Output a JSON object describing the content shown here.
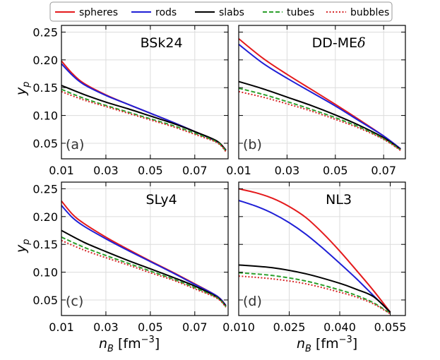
{
  "legend": {
    "position": "top-center",
    "entries": [
      {
        "name": "spheres",
        "color": "#e41a1c",
        "dash": "solid"
      },
      {
        "name": "rods",
        "color": "#1f1fd6",
        "dash": "solid"
      },
      {
        "name": "slabs",
        "color": "#000000",
        "dash": "solid"
      },
      {
        "name": "tubes",
        "color": "#2ca02c",
        "dash": "dashed"
      },
      {
        "name": "bubbles",
        "color": "#d62728",
        "dash": "dotted"
      }
    ]
  },
  "axes": {
    "ylabel_main": "y",
    "ylabel_sub": "p",
    "xlabel_main": "n",
    "xlabel_sub": "B",
    "xlabel_unit_open": " [fm",
    "xlabel_unit_exp": "−3",
    "xlabel_unit_close": "]"
  },
  "chart_data": [
    {
      "type": "line",
      "panel": "(a)",
      "title": "BSk24",
      "xlim": [
        0.01,
        0.085
      ],
      "ylim": [
        0.022,
        0.262
      ],
      "xticks": [
        0.01,
        0.03,
        0.05,
        0.07
      ],
      "xtick_labels": [
        "0.01",
        "0.03",
        "0.05",
        "0.07"
      ],
      "yticks": [
        0.05,
        0.1,
        0.15,
        0.2,
        0.25
      ],
      "ytick_labels": [
        "0.05",
        "0.10",
        "0.15",
        "0.20",
        "0.25"
      ],
      "ytick_labels_shown": true,
      "series": [
        {
          "name": "spheres",
          "x": [
            0.01,
            0.015,
            0.02,
            0.03,
            0.04,
            0.05,
            0.06,
            0.07,
            0.08,
            0.084
          ],
          "y": [
            0.198,
            0.175,
            0.158,
            0.137,
            0.12,
            0.104,
            0.088,
            0.071,
            0.053,
            0.038
          ]
        },
        {
          "name": "rods",
          "x": [
            0.01,
            0.015,
            0.02,
            0.03,
            0.04,
            0.05,
            0.06,
            0.07,
            0.08,
            0.084
          ],
          "y": [
            0.193,
            0.172,
            0.156,
            0.136,
            0.12,
            0.104,
            0.088,
            0.071,
            0.053,
            0.038
          ]
        },
        {
          "name": "slabs",
          "x": [
            0.01,
            0.02,
            0.03,
            0.04,
            0.05,
            0.06,
            0.07,
            0.08,
            0.084
          ],
          "y": [
            0.154,
            0.138,
            0.124,
            0.112,
            0.099,
            0.086,
            0.071,
            0.054,
            0.037
          ]
        },
        {
          "name": "tubes",
          "x": [
            0.01,
            0.02,
            0.03,
            0.04,
            0.05,
            0.06,
            0.07,
            0.08,
            0.084
          ],
          "y": [
            0.147,
            0.131,
            0.118,
            0.106,
            0.094,
            0.082,
            0.068,
            0.052,
            0.036
          ]
        },
        {
          "name": "bubbles",
          "x": [
            0.01,
            0.02,
            0.03,
            0.04,
            0.05,
            0.06,
            0.07,
            0.08,
            0.084
          ],
          "y": [
            0.143,
            0.128,
            0.116,
            0.104,
            0.092,
            0.08,
            0.066,
            0.051,
            0.035
          ]
        }
      ]
    },
    {
      "type": "line",
      "panel": "(b)",
      "title": "DD-ME",
      "title_symbol": "δ",
      "xlim": [
        0.01,
        0.079
      ],
      "ylim": [
        0.022,
        0.262
      ],
      "xticks": [
        0.01,
        0.03,
        0.05,
        0.07
      ],
      "xtick_labels": [
        "0.01",
        "0.03",
        "0.05",
        "0.07"
      ],
      "yticks": [
        0.05,
        0.1,
        0.15,
        0.2,
        0.25
      ],
      "ytick_labels_shown": false,
      "series": [
        {
          "name": "spheres",
          "x": [
            0.01,
            0.02,
            0.03,
            0.04,
            0.05,
            0.06,
            0.07,
            0.077
          ],
          "y": [
            0.238,
            0.203,
            0.174,
            0.147,
            0.12,
            0.092,
            0.063,
            0.04
          ]
        },
        {
          "name": "rods",
          "x": [
            0.01,
            0.02,
            0.03,
            0.04,
            0.05,
            0.06,
            0.07,
            0.077
          ],
          "y": [
            0.228,
            0.194,
            0.167,
            0.142,
            0.117,
            0.09,
            0.063,
            0.04
          ]
        },
        {
          "name": "slabs",
          "x": [
            0.01,
            0.02,
            0.03,
            0.04,
            0.05,
            0.06,
            0.07,
            0.077
          ],
          "y": [
            0.161,
            0.148,
            0.133,
            0.118,
            0.101,
            0.082,
            0.06,
            0.039
          ]
        },
        {
          "name": "tubes",
          "x": [
            0.01,
            0.02,
            0.03,
            0.04,
            0.05,
            0.06,
            0.07,
            0.077
          ],
          "y": [
            0.149,
            0.138,
            0.125,
            0.111,
            0.096,
            0.079,
            0.058,
            0.038
          ]
        },
        {
          "name": "bubbles",
          "x": [
            0.01,
            0.02,
            0.03,
            0.04,
            0.05,
            0.06,
            0.07,
            0.077
          ],
          "y": [
            0.143,
            0.133,
            0.121,
            0.108,
            0.093,
            0.077,
            0.057,
            0.037
          ]
        }
      ]
    },
    {
      "type": "line",
      "panel": "(c)",
      "title": "SLy4",
      "xlim": [
        0.01,
        0.085
      ],
      "ylim": [
        0.022,
        0.262
      ],
      "xticks": [
        0.01,
        0.03,
        0.05,
        0.07
      ],
      "xtick_labels": [
        "0.01",
        "0.03",
        "0.05",
        "0.07"
      ],
      "yticks": [
        0.05,
        0.1,
        0.15,
        0.2,
        0.25
      ],
      "ytick_labels": [
        "0.05",
        "0.10",
        "0.15",
        "0.20",
        "0.25"
      ],
      "ytick_labels_shown": true,
      "series": [
        {
          "name": "spheres",
          "x": [
            0.01,
            0.015,
            0.02,
            0.03,
            0.04,
            0.05,
            0.06,
            0.07,
            0.08,
            0.084
          ],
          "y": [
            0.228,
            0.204,
            0.188,
            0.163,
            0.141,
            0.12,
            0.1,
            0.079,
            0.057,
            0.04
          ]
        },
        {
          "name": "rods",
          "x": [
            0.01,
            0.015,
            0.02,
            0.03,
            0.04,
            0.05,
            0.06,
            0.07,
            0.08,
            0.084
          ],
          "y": [
            0.22,
            0.198,
            0.183,
            0.16,
            0.139,
            0.119,
            0.099,
            0.078,
            0.057,
            0.04
          ]
        },
        {
          "name": "slabs",
          "x": [
            0.01,
            0.02,
            0.03,
            0.04,
            0.05,
            0.06,
            0.07,
            0.08,
            0.084
          ],
          "y": [
            0.175,
            0.154,
            0.137,
            0.121,
            0.106,
            0.091,
            0.075,
            0.055,
            0.039
          ]
        },
        {
          "name": "tubes",
          "x": [
            0.01,
            0.02,
            0.03,
            0.04,
            0.05,
            0.06,
            0.07,
            0.08,
            0.084
          ],
          "y": [
            0.163,
            0.145,
            0.13,
            0.116,
            0.102,
            0.088,
            0.072,
            0.054,
            0.038
          ]
        },
        {
          "name": "bubbles",
          "x": [
            0.01,
            0.02,
            0.03,
            0.04,
            0.05,
            0.06,
            0.07,
            0.08,
            0.084
          ],
          "y": [
            0.157,
            0.14,
            0.126,
            0.113,
            0.099,
            0.086,
            0.07,
            0.053,
            0.037
          ]
        }
      ]
    },
    {
      "type": "line",
      "panel": "(d)",
      "title": "NL3",
      "xlim": [
        0.01,
        0.0595
      ],
      "ylim": [
        0.022,
        0.262
      ],
      "xticks": [
        0.01,
        0.025,
        0.04,
        0.055
      ],
      "xtick_labels": [
        "0.010",
        "0.025",
        "0.040",
        "0.055"
      ],
      "yticks": [
        0.05,
        0.1,
        0.15,
        0.2,
        0.25
      ],
      "ytick_labels_shown": false,
      "series": [
        {
          "name": "spheres",
          "x": [
            0.01,
            0.015,
            0.02,
            0.025,
            0.03,
            0.035,
            0.04,
            0.045,
            0.05,
            0.055
          ],
          "y": [
            0.25,
            0.243,
            0.233,
            0.218,
            0.198,
            0.17,
            0.138,
            0.103,
            0.067,
            0.028
          ]
        },
        {
          "name": "rods",
          "x": [
            0.01,
            0.015,
            0.02,
            0.025,
            0.03,
            0.035,
            0.04,
            0.045,
            0.05,
            0.055
          ],
          "y": [
            0.229,
            0.219,
            0.206,
            0.189,
            0.168,
            0.143,
            0.116,
            0.088,
            0.058,
            0.028
          ]
        },
        {
          "name": "slabs",
          "x": [
            0.01,
            0.02,
            0.03,
            0.04,
            0.045,
            0.05,
            0.055
          ],
          "y": [
            0.113,
            0.108,
            0.097,
            0.08,
            0.069,
            0.056,
            0.028
          ]
        },
        {
          "name": "tubes",
          "x": [
            0.01,
            0.02,
            0.03,
            0.04,
            0.045,
            0.05,
            0.055
          ],
          "y": [
            0.099,
            0.094,
            0.084,
            0.068,
            0.058,
            0.045,
            0.026
          ]
        },
        {
          "name": "bubbles",
          "x": [
            0.01,
            0.02,
            0.03,
            0.04,
            0.045,
            0.05,
            0.055
          ],
          "y": [
            0.093,
            0.088,
            0.079,
            0.064,
            0.055,
            0.043,
            0.025
          ]
        }
      ]
    }
  ]
}
